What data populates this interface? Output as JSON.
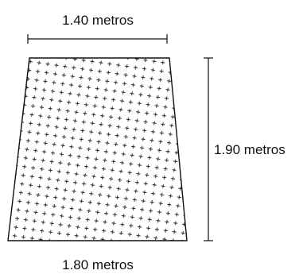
{
  "diagram": {
    "shape": "trapezoid",
    "fill_pattern": "plus-dots",
    "top_label": "1.40 metros",
    "height_label": "1.90 metros",
    "bottom_label": "1.80 metros",
    "colors": {
      "stroke": "#111111",
      "pattern": "#222222",
      "background": "#ffffff"
    }
  }
}
